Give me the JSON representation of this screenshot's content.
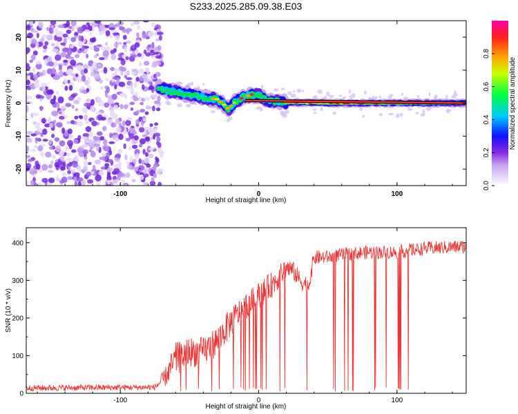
{
  "figure_title": "S233.2025.285.09.38.E03",
  "chart_data": [
    {
      "type": "heatmap",
      "name": "spectrogram",
      "xlabel": "Height of straight line (km)",
      "ylabel": "Frequency (Hz)",
      "xlim": [
        -168,
        150
      ],
      "ylim": [
        -25,
        25
      ],
      "x_ticks": [
        -100,
        0,
        100
      ],
      "x_tick_labels": [
        "-100",
        "0",
        "100"
      ],
      "y_ticks": [
        -20,
        -10,
        0,
        10,
        20
      ],
      "y_tick_labels": [
        "-20",
        "-10",
        "0",
        "10",
        "20"
      ],
      "noise_region_x": [
        -168,
        -70
      ],
      "signal_track": {
        "x": [
          -72,
          -65,
          -55,
          -45,
          -38,
          -30,
          -25,
          -22,
          -18,
          -12,
          -5,
          0,
          5,
          10,
          20,
          40,
          60,
          80,
          100,
          120,
          150
        ],
        "frequency": [
          4.5,
          3.8,
          3.0,
          2.2,
          1.6,
          1.2,
          -0.5,
          -1.8,
          0.0,
          1.6,
          2.6,
          2.3,
          1.2,
          0.6,
          0.2,
          0.1,
          0.0,
          0.0,
          0.0,
          0.0,
          0.0
        ]
      },
      "fit_line": {
        "x": [
          -10,
          150
        ],
        "frequency": [
          0.8,
          0.0
        ]
      },
      "colorbar": {
        "label": "Normalized spectral amplitude",
        "range": [
          0,
          1
        ],
        "ticks": [
          0.0,
          0.2,
          0.4,
          0.6,
          0.8
        ],
        "tick_labels": [
          "0.0",
          "0.2",
          "0.4",
          "0.6",
          "0.8"
        ]
      }
    },
    {
      "type": "line",
      "name": "snr",
      "xlabel": "Height of straight line (km)",
      "ylabel": "SNR (10 * v/v)",
      "xlim": [
        -168,
        150
      ],
      "ylim": [
        0,
        440
      ],
      "x_ticks": [
        -100,
        0,
        100
      ],
      "x_tick_labels": [
        "-100",
        "0",
        "100"
      ],
      "y_ticks": [
        0,
        100,
        200,
        300,
        400
      ],
      "y_tick_labels": [
        "0",
        "100",
        "200",
        "300",
        "400"
      ],
      "color": "#ee3333",
      "envelope": {
        "x": [
          -168,
          -75,
          -68,
          -60,
          -50,
          -40,
          -30,
          -20,
          -10,
          0,
          10,
          17,
          20,
          25,
          30,
          36,
          40,
          50,
          60,
          80,
          100,
          120,
          150
        ],
        "mean": [
          14,
          16,
          40,
          90,
          110,
          110,
          140,
          190,
          230,
          260,
          290,
          320,
          335,
          325,
          300,
          285,
          360,
          362,
          368,
          375,
          375,
          385,
          390
        ],
        "spread": [
          8,
          8,
          25,
          45,
          40,
          40,
          40,
          40,
          35,
          35,
          35,
          30,
          30,
          25,
          25,
          25,
          20,
          18,
          18,
          18,
          18,
          18,
          18
        ]
      },
      "dropout_range_x": [
        -60,
        110
      ]
    }
  ]
}
